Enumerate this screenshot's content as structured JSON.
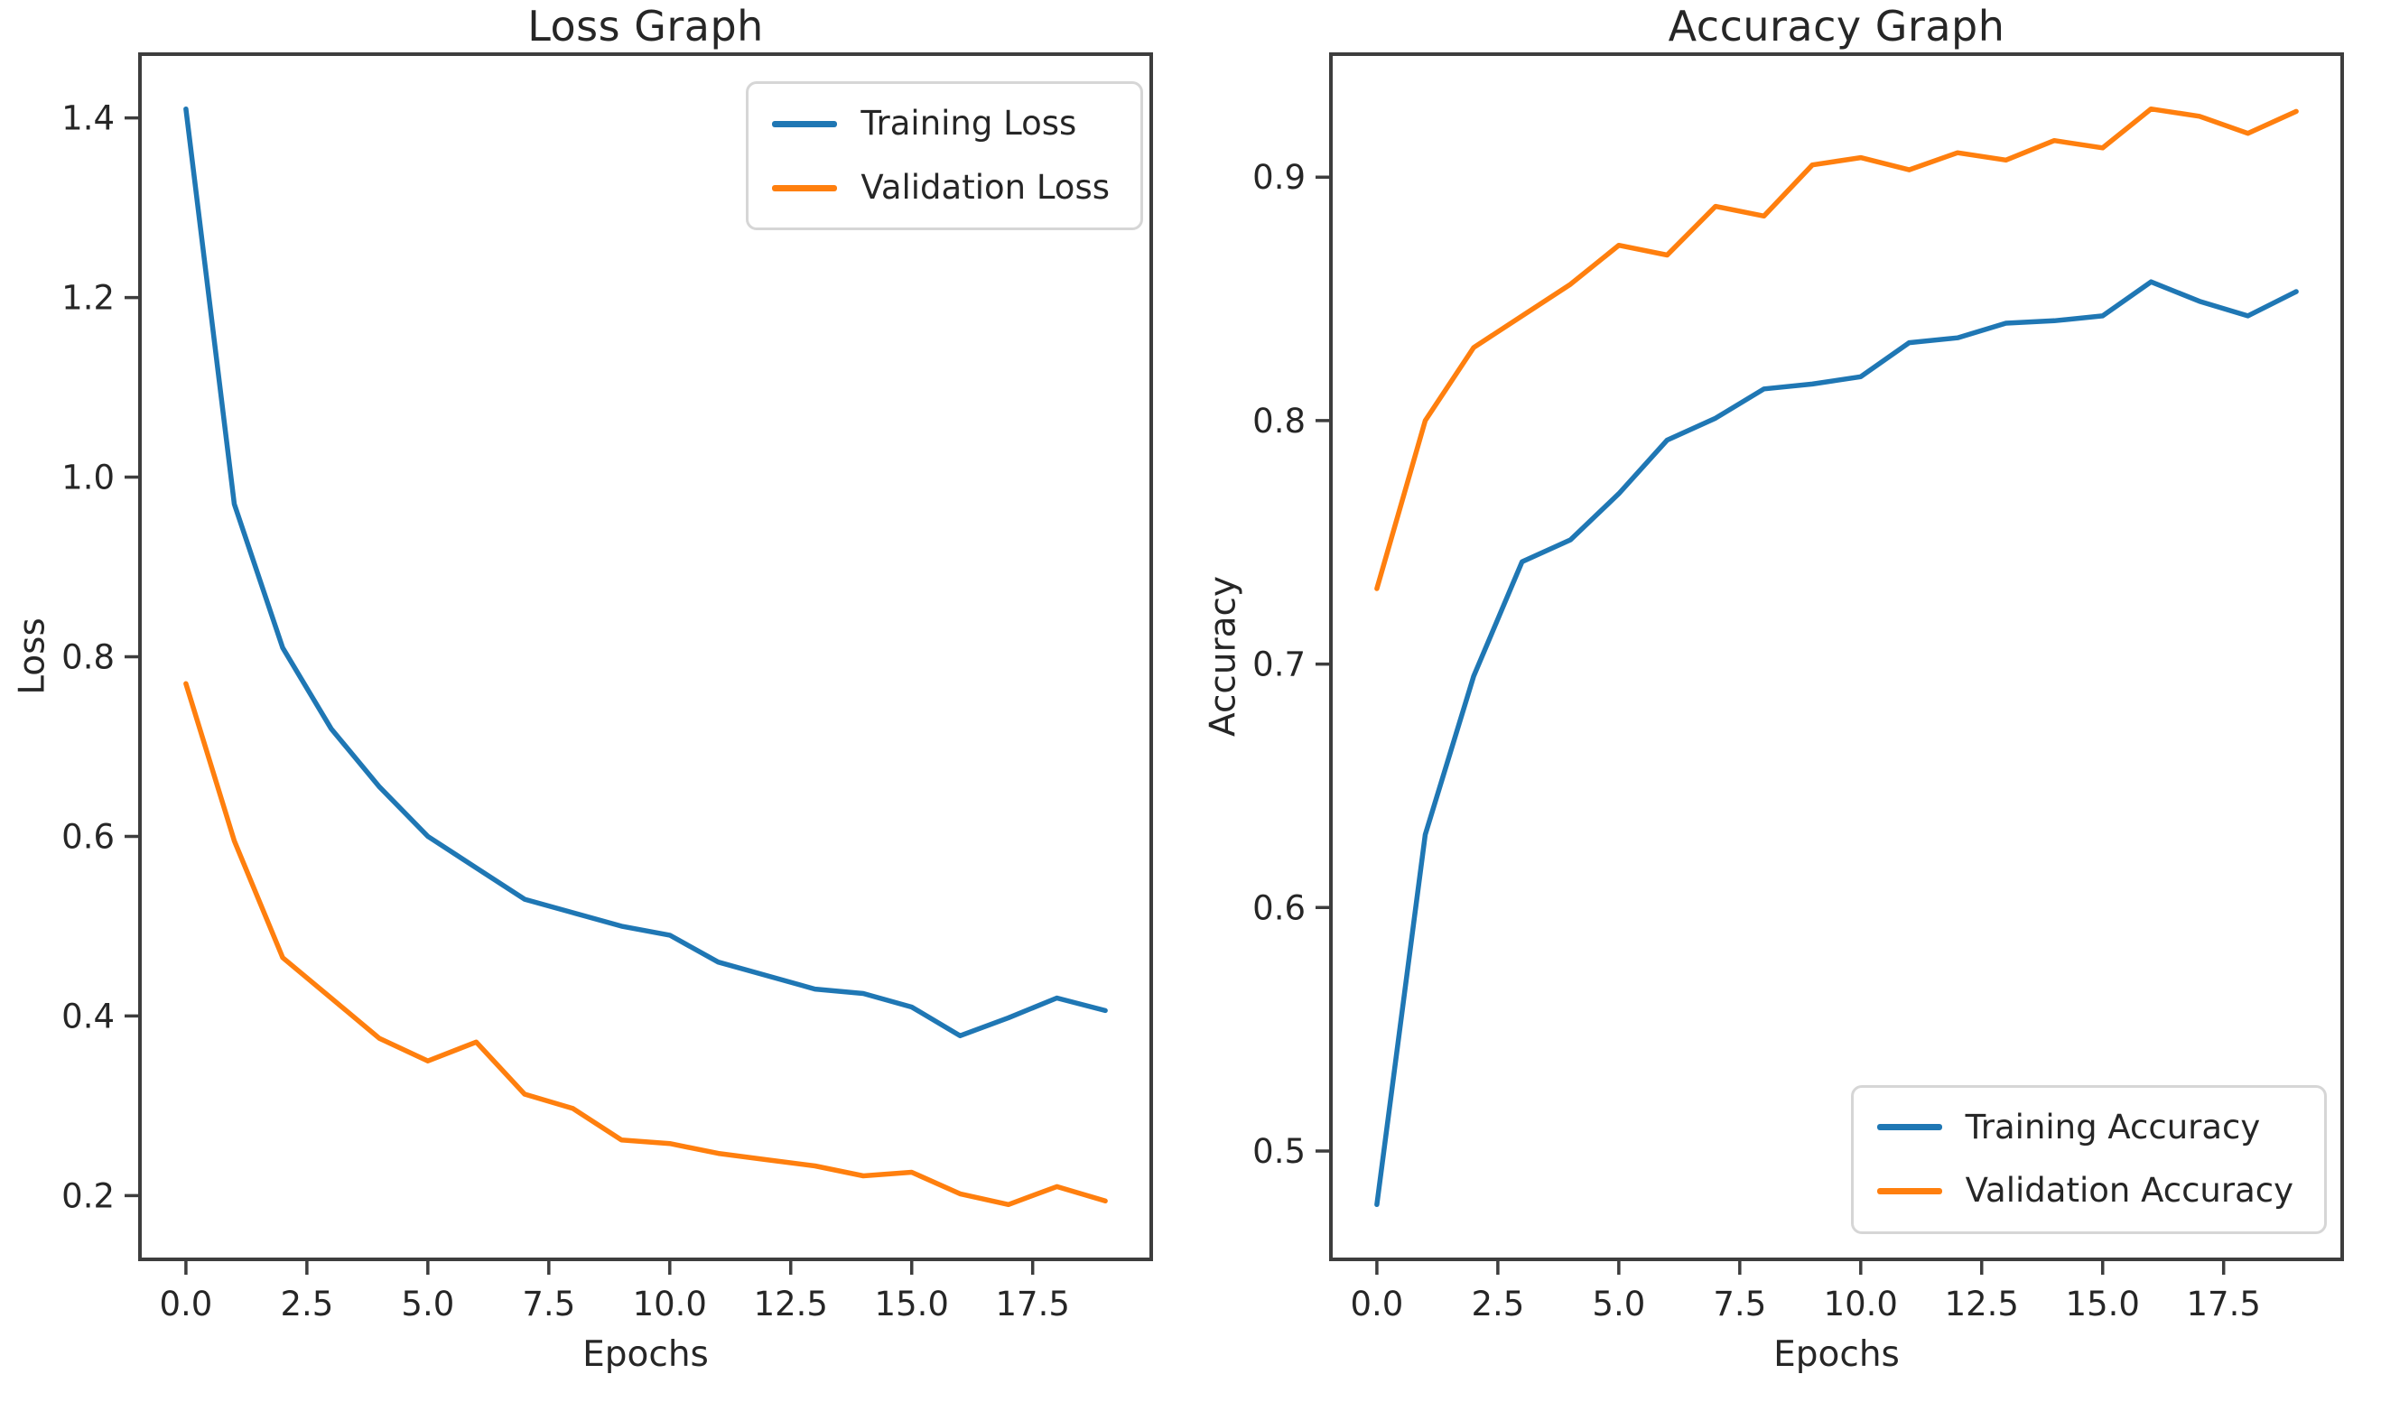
{
  "figure": {
    "background": "#ffffff",
    "spine_color": "#3d3d3d",
    "tick_color": "#3d3d3d",
    "text_color": "#262626",
    "accent_colors": {
      "blue": "#1f77b4",
      "orange": "#ff7f0e"
    }
  },
  "chart_data": [
    {
      "id": "loss",
      "type": "line",
      "title": "Loss Graph",
      "xlabel": "Epochs",
      "ylabel": "Loss",
      "grid": false,
      "legend_position": "top-right",
      "x": [
        0,
        1,
        2,
        3,
        4,
        5,
        6,
        7,
        8,
        9,
        10,
        11,
        12,
        13,
        14,
        15,
        16,
        17,
        18,
        19
      ],
      "xlim": [
        -0.95,
        19.95
      ],
      "ylim": [
        0.129,
        1.471
      ],
      "xticks": [
        0,
        2.5,
        5,
        7.5,
        10,
        12.5,
        15,
        17.5
      ],
      "xtick_labels": [
        "0.0",
        "2.5",
        "5.0",
        "7.5",
        "10.0",
        "12.5",
        "15.0",
        "17.5"
      ],
      "yticks": [
        0.2,
        0.4,
        0.6,
        0.8,
        1.0,
        1.2,
        1.4
      ],
      "ytick_labels": [
        "0.2",
        "0.4",
        "0.6",
        "0.8",
        "1.0",
        "1.2",
        "1.4"
      ],
      "series": [
        {
          "name": "Training Loss",
          "color": "#1f77b4",
          "values": [
            1.41,
            0.97,
            0.81,
            0.72,
            0.655,
            0.6,
            0.565,
            0.53,
            0.515,
            0.5,
            0.49,
            0.46,
            0.445,
            0.43,
            0.425,
            0.41,
            0.378,
            0.398,
            0.42,
            0.406
          ]
        },
        {
          "name": "Validation Loss",
          "color": "#ff7f0e",
          "values": [
            0.77,
            0.595,
            0.465,
            0.42,
            0.375,
            0.35,
            0.371,
            0.313,
            0.297,
            0.262,
            0.258,
            0.247,
            0.24,
            0.233,
            0.222,
            0.226,
            0.202,
            0.19,
            0.21,
            0.194
          ]
        }
      ]
    },
    {
      "id": "accuracy",
      "type": "line",
      "title": "Accuracy Graph",
      "xlabel": "Epochs",
      "ylabel": "Accuracy",
      "grid": false,
      "legend_position": "bottom-right",
      "x": [
        0,
        1,
        2,
        3,
        4,
        5,
        6,
        7,
        8,
        9,
        10,
        11,
        12,
        13,
        14,
        15,
        16,
        17,
        18,
        19
      ],
      "xlim": [
        -0.95,
        19.95
      ],
      "ylim": [
        0.4555,
        0.9505
      ],
      "xticks": [
        0,
        2.5,
        5,
        7.5,
        10,
        12.5,
        15,
        17.5
      ],
      "xtick_labels": [
        "0.0",
        "2.5",
        "5.0",
        "7.5",
        "10.0",
        "12.5",
        "15.0",
        "17.5"
      ],
      "yticks": [
        0.5,
        0.6,
        0.7,
        0.8,
        0.9
      ],
      "ytick_labels": [
        "0.5",
        "0.6",
        "0.7",
        "0.8",
        "0.9"
      ],
      "series": [
        {
          "name": "Training Accuracy",
          "color": "#1f77b4",
          "values": [
            0.478,
            0.63,
            0.695,
            0.742,
            0.751,
            0.77,
            0.792,
            0.801,
            0.813,
            0.815,
            0.818,
            0.832,
            0.834,
            0.84,
            0.841,
            0.843,
            0.857,
            0.849,
            0.843,
            0.853
          ]
        },
        {
          "name": "Validation Accuracy",
          "color": "#ff7f0e",
          "values": [
            0.731,
            0.8,
            0.83,
            0.843,
            0.856,
            0.872,
            0.868,
            0.888,
            0.884,
            0.905,
            0.908,
            0.903,
            0.91,
            0.907,
            0.915,
            0.912,
            0.928,
            0.925,
            0.918,
            0.927
          ]
        }
      ]
    }
  ]
}
